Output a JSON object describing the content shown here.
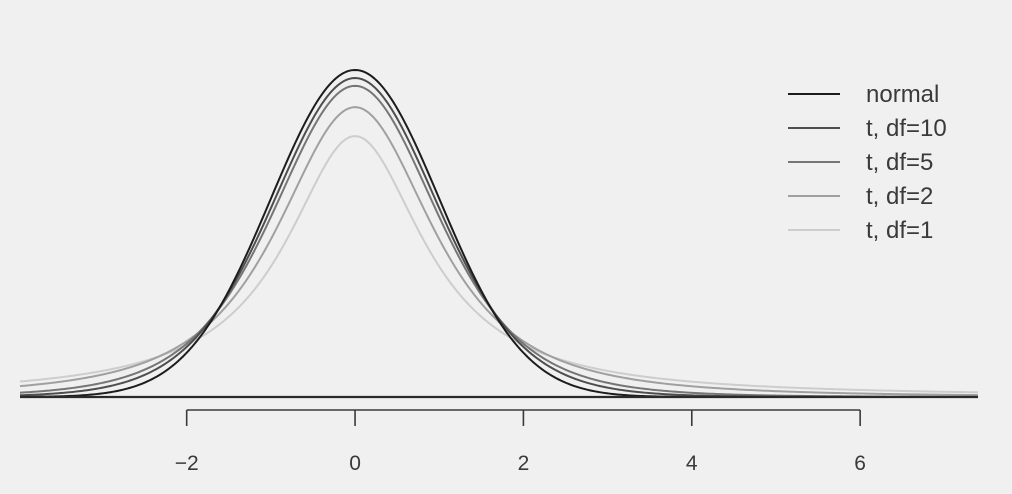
{
  "chart_data": {
    "type": "line",
    "title": "",
    "xlabel": "",
    "ylabel": "",
    "xlim": [
      -3.98,
      7.4
    ],
    "ylim": [
      0,
      0.4
    ],
    "x_ticks": [
      -2,
      0,
      2,
      4,
      6
    ],
    "x_tick_labels": [
      "−2",
      "0",
      "2",
      "4",
      "6"
    ],
    "grid": false,
    "legend_position": "top-right",
    "baseline": 0,
    "series": [
      {
        "name": "normal",
        "distribution": "normal",
        "df": null,
        "color": "#1c1c1c",
        "x": [
          -4,
          -3,
          -2,
          -1.5,
          -1,
          -0.5,
          0,
          0.5,
          1,
          1.5,
          2,
          3,
          4,
          6,
          7.4
        ],
        "y": [
          0.0001,
          0.0044,
          0.054,
          0.1295,
          0.242,
          0.3521,
          0.3989,
          0.3521,
          0.242,
          0.1295,
          0.054,
          0.0044,
          0.0001,
          0,
          0
        ]
      },
      {
        "name": "t, df=10",
        "distribution": "t",
        "df": 10,
        "color": "#4e4e4e",
        "x": [
          -4,
          -3,
          -2,
          -1.5,
          -1,
          -0.5,
          0,
          0.5,
          1,
          1.5,
          2,
          3,
          4,
          6,
          7.4
        ],
        "y": [
          0.0028,
          0.0114,
          0.0611,
          0.1274,
          0.2304,
          0.3397,
          0.3891,
          0.3397,
          0.2304,
          0.1274,
          0.0611,
          0.0114,
          0.0028,
          0.0002,
          0.0001
        ]
      },
      {
        "name": "t, df=5",
        "distribution": "t",
        "df": 5,
        "color": "#767676",
        "x": [
          -4,
          -3,
          -2,
          -1.5,
          -1,
          -0.5,
          0,
          0.5,
          1,
          1.5,
          2,
          3,
          4,
          6,
          7.4
        ],
        "y": [
          0.0051,
          0.0173,
          0.0651,
          0.1245,
          0.2197,
          0.3279,
          0.3796,
          0.3279,
          0.2197,
          0.1245,
          0.0651,
          0.0173,
          0.0051,
          0.0009,
          0.0003
        ]
      },
      {
        "name": "t, df=2",
        "distribution": "t",
        "df": 2,
        "color": "#a0a0a0",
        "x": [
          -4,
          -3,
          -2,
          -1.5,
          -1,
          -0.5,
          0,
          0.5,
          1,
          1.5,
          2,
          3,
          4,
          6,
          7.4
        ],
        "y": [
          0.0131,
          0.0274,
          0.068,
          0.1162,
          0.1925,
          0.2962,
          0.3536,
          0.2962,
          0.1925,
          0.1162,
          0.068,
          0.0274,
          0.0131,
          0.0043,
          0.0024
        ]
      },
      {
        "name": "t, df=1",
        "distribution": "t",
        "df": 1,
        "color": "#cdcdcd",
        "x": [
          -4,
          -3,
          -2,
          -1.5,
          -1,
          -0.5,
          0,
          0.5,
          1,
          1.5,
          2,
          3,
          4,
          6,
          7.4
        ],
        "y": [
          0.0187,
          0.0318,
          0.0637,
          0.0979,
          0.1592,
          0.2546,
          0.3183,
          0.2546,
          0.1592,
          0.0979,
          0.0637,
          0.0318,
          0.0187,
          0.0086,
          0.0057
        ]
      }
    ]
  }
}
